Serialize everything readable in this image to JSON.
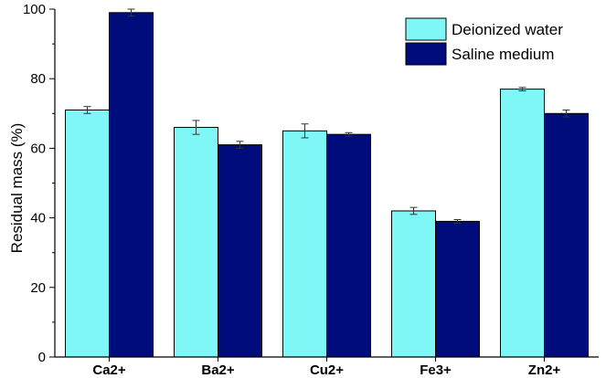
{
  "chart_data": {
    "type": "bar",
    "categories": [
      "Ca2+",
      "Ba2+",
      "Cu2+",
      "Fe3+",
      "Zn2+"
    ],
    "series": [
      {
        "name": "Deionized water",
        "color": "#7ff7f7",
        "values": [
          71,
          66,
          65,
          42,
          77
        ],
        "errors": [
          1.0,
          2.0,
          2.0,
          1.0,
          0.5
        ]
      },
      {
        "name": "Saline medium",
        "color": "#000c7b",
        "values": [
          99,
          61,
          64,
          39,
          70
        ],
        "errors": [
          1.0,
          1.0,
          0.5,
          0.5,
          1.0
        ]
      }
    ],
    "xlabel": "",
    "ylabel": "Residual mass (%)",
    "ylim": [
      0,
      100
    ],
    "yticks": [
      0,
      20,
      40,
      60,
      80,
      100
    ],
    "legend_position": "top-right",
    "grid": false
  }
}
